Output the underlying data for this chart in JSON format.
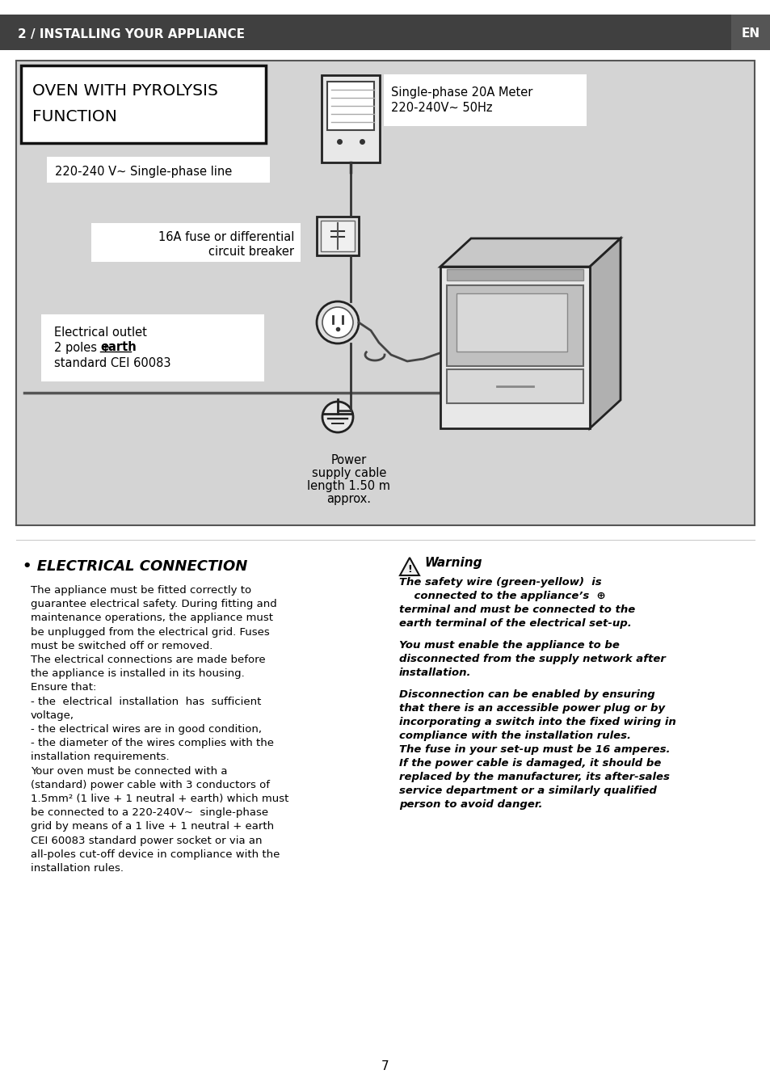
{
  "header_bg": "#404040",
  "header_text": "2 / INSTALLING YOUR APPLIANCE",
  "header_en": "EN",
  "page_bg": "#ffffff",
  "diagram_bg": "#d4d4d4",
  "diagram_title_line1": "OVEN WITH PYROLYSIS",
  "diagram_title_line2": "FUNCTION",
  "meter_label_line1": "Single-phase 20A Meter",
  "meter_label_line2": "220-240V~ 50Hz",
  "line_label": "220-240 V~ Single-phase line",
  "fuse_label_line1": "16A fuse or differential",
  "fuse_label_line2": "circuit breaker",
  "outlet_label_line1": "Electrical outlet",
  "outlet_label_line2a": "2 poles + ",
  "outlet_label_line2b": "earth",
  "outlet_label_line3": "standard CEI 60083",
  "cable_label_line1": "Power",
  "cable_label_line2": "supply cable",
  "cable_label_line3": "length 1.50 m",
  "cable_label_line4": "approx.",
  "section_title": "• ELECTRICAL CONNECTION",
  "warning_title": "Warning",
  "left_lines": [
    "The appliance must be fitted correctly to",
    "guarantee electrical safety. During fitting and",
    "maintenance operations, the appliance must",
    "be unplugged from the electrical grid. Fuses",
    "must be switched off or removed.",
    "The electrical connections are made before",
    "the appliance is installed in its housing.",
    "Ensure that:",
    "- the  electrical  installation  has  sufficient",
    "voltage,",
    "- the electrical wires are in good condition,",
    "- the diameter of the wires complies with the",
    "installation requirements.",
    "Your oven must be connected with a",
    "(standard) power cable with 3 conductors of",
    "1.5mm² (1 live + 1 neutral + earth) which must",
    "be connected to a 220-240V~  single-phase",
    "grid by means of a 1 live + 1 neutral + earth",
    "CEI 60083 standard power socket or via an",
    "all-poles cut-off device in compliance with the",
    "installation rules."
  ],
  "warn1_lines": [
    "The safety wire (green-yellow)  is",
    "    connected to the appliance’s  ⊕",
    "terminal and must be connected to the",
    "earth terminal of the electrical set-up."
  ],
  "warn2_lines": [
    "You must enable the appliance to be",
    "disconnected from the supply network after",
    "installation."
  ],
  "warn3_lines": [
    "Disconnection can be enabled by ensuring",
    "that there is an accessible power plug or by",
    "incorporating a switch into the fixed wiring in",
    "compliance with the installation rules.",
    "The fuse in your set-up must be 16 amperes.",
    "If the power cable is damaged, it should be",
    "replaced by the manufacturer, its after-sales",
    "service department or a similarly qualified",
    "person to avoid danger."
  ],
  "page_number": "7"
}
